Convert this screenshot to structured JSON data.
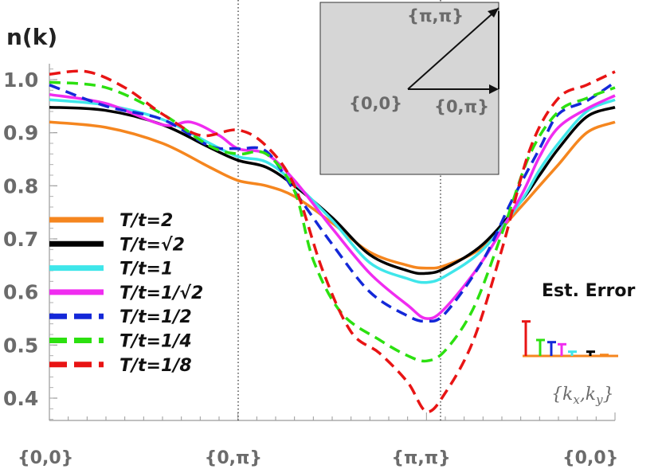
{
  "chart_data": {
    "type": "line",
    "ylabel": "n(k)",
    "ylim": [
      0.36,
      1.03
    ],
    "y_ticks": [
      "1.0",
      "0.9",
      "0.8",
      "0.7",
      "0.6",
      "0.5",
      "0.4"
    ],
    "y_tick_values": [
      1.0,
      0.9,
      0.8,
      0.7,
      0.6,
      0.5,
      0.4
    ],
    "x_range": [
      0,
      3
    ],
    "x_tick_labels": [
      "{0,0}",
      "{0,π}",
      "{π,π}",
      "{0,0}"
    ],
    "x_tick_positions": [
      0,
      1,
      2,
      3
    ],
    "x_axis_caption": "{kx,ky}",
    "series": [
      {
        "name": "T/t=2",
        "color": "#f5861f",
        "dash": "solid",
        "x": [
          0,
          0.3,
          0.6,
          0.85,
          1.0,
          1.15,
          1.3,
          1.5,
          1.7,
          1.9,
          2.0,
          2.1,
          2.3,
          2.5,
          2.6,
          2.7,
          2.85,
          3.0
        ],
        "y": [
          0.92,
          0.91,
          0.88,
          0.835,
          0.81,
          0.8,
          0.78,
          0.73,
          0.675,
          0.65,
          0.645,
          0.65,
          0.685,
          0.76,
          0.8,
          0.84,
          0.9,
          0.92
        ]
      },
      {
        "name": "T/t=√2",
        "color": "#000000",
        "dash": "solid",
        "x": [
          0,
          0.3,
          0.6,
          0.85,
          1.0,
          1.15,
          1.3,
          1.5,
          1.7,
          1.9,
          2.0,
          2.1,
          2.3,
          2.5,
          2.6,
          2.7,
          2.85,
          3.0
        ],
        "y": [
          0.948,
          0.942,
          0.915,
          0.872,
          0.848,
          0.835,
          0.8,
          0.74,
          0.67,
          0.64,
          0.635,
          0.645,
          0.69,
          0.77,
          0.82,
          0.87,
          0.93,
          0.948
        ]
      },
      {
        "name": "T/t=1",
        "color": "#3fe6ea",
        "dash": "solid",
        "x": [
          0,
          0.3,
          0.6,
          0.85,
          1.0,
          1.15,
          1.3,
          1.5,
          1.7,
          1.9,
          2.0,
          2.1,
          2.3,
          2.5,
          2.6,
          2.7,
          2.85,
          3.0
        ],
        "y": [
          0.962,
          0.952,
          0.925,
          0.88,
          0.855,
          0.845,
          0.805,
          0.735,
          0.655,
          0.625,
          0.618,
          0.63,
          0.68,
          0.77,
          0.83,
          0.88,
          0.94,
          0.962
        ]
      },
      {
        "name": "T/t=1/√2",
        "color": "#f02cf0",
        "dash": "solid",
        "x": [
          0,
          0.3,
          0.6,
          0.75,
          0.9,
          1.0,
          1.15,
          1.3,
          1.5,
          1.7,
          1.9,
          2.0,
          2.1,
          2.3,
          2.5,
          2.6,
          2.7,
          2.85,
          3.0
        ],
        "y": [
          0.972,
          0.955,
          0.915,
          0.92,
          0.895,
          0.87,
          0.86,
          0.81,
          0.72,
          0.635,
          0.575,
          0.55,
          0.57,
          0.66,
          0.78,
          0.855,
          0.91,
          0.945,
          0.97
        ]
      },
      {
        "name": "T/t=1/2",
        "color": "#1428d8",
        "dash": "dash",
        "x": [
          0,
          0.3,
          0.6,
          0.85,
          1.0,
          1.15,
          1.3,
          1.5,
          1.7,
          1.9,
          2.0,
          2.1,
          2.3,
          2.45,
          2.6,
          2.7,
          2.85,
          3.0
        ],
        "y": [
          0.99,
          0.95,
          0.925,
          0.875,
          0.87,
          0.865,
          0.79,
          0.69,
          0.6,
          0.555,
          0.545,
          0.56,
          0.66,
          0.77,
          0.87,
          0.935,
          0.96,
          0.995
        ]
      },
      {
        "name": "T/t=1/4",
        "color": "#2ce010",
        "dash": "dash",
        "x": [
          0,
          0.3,
          0.6,
          0.85,
          1.0,
          1.15,
          1.3,
          1.4,
          1.55,
          1.75,
          1.9,
          2.0,
          2.1,
          2.25,
          2.4,
          2.55,
          2.7,
          2.85,
          3.0
        ],
        "y": [
          0.995,
          0.985,
          0.935,
          0.875,
          0.86,
          0.86,
          0.79,
          0.66,
          0.56,
          0.51,
          0.48,
          0.47,
          0.49,
          0.57,
          0.71,
          0.86,
          0.94,
          0.965,
          0.985
        ]
      },
      {
        "name": "T/t=1/8",
        "color": "#e81414",
        "dash": "dash",
        "x": [
          0,
          0.2,
          0.4,
          0.6,
          0.8,
          1.0,
          1.15,
          1.3,
          1.45,
          1.6,
          1.75,
          1.9,
          2.0,
          2.1,
          2.25,
          2.4,
          2.55,
          2.7,
          2.85,
          3.0
        ],
        "y": [
          1.01,
          1.015,
          0.985,
          0.935,
          0.895,
          0.905,
          0.875,
          0.8,
          0.64,
          0.525,
          0.485,
          0.43,
          0.375,
          0.41,
          0.51,
          0.68,
          0.87,
          0.965,
          0.99,
          1.015
        ]
      }
    ],
    "legend": [
      "T/t=2",
      "T/t=√2",
      "T/t=1",
      "T/t=1/√2",
      "T/t=1/2",
      "T/t=1/4",
      "T/t=1/8"
    ],
    "legend_position": "left"
  },
  "inset": {
    "label_origin": "{0,0}",
    "label_pi_pi": "{π,π}",
    "label_zero_pi": "{0,π}"
  },
  "error_panel": {
    "title": "Est. Error",
    "caption": "{kx,ky}",
    "bars": [
      {
        "name": "T/t=1/8",
        "color": "#e81414",
        "error": 0.065
      },
      {
        "name": "T/t=1/4",
        "color": "#2ce010",
        "error": 0.03
      },
      {
        "name": "T/t=1/2",
        "color": "#1428d8",
        "error": 0.026
      },
      {
        "name": "T/t=1/√2",
        "color": "#f02cf0",
        "error": 0.022
      },
      {
        "name": "T/t=1",
        "color": "#3fe6ea",
        "error": 0.008
      },
      {
        "name": "T/t=√2",
        "color": "#000000",
        "error": 0.008
      },
      {
        "name": "T/t=2",
        "color": "#f5861f",
        "error": 0.002
      }
    ]
  }
}
